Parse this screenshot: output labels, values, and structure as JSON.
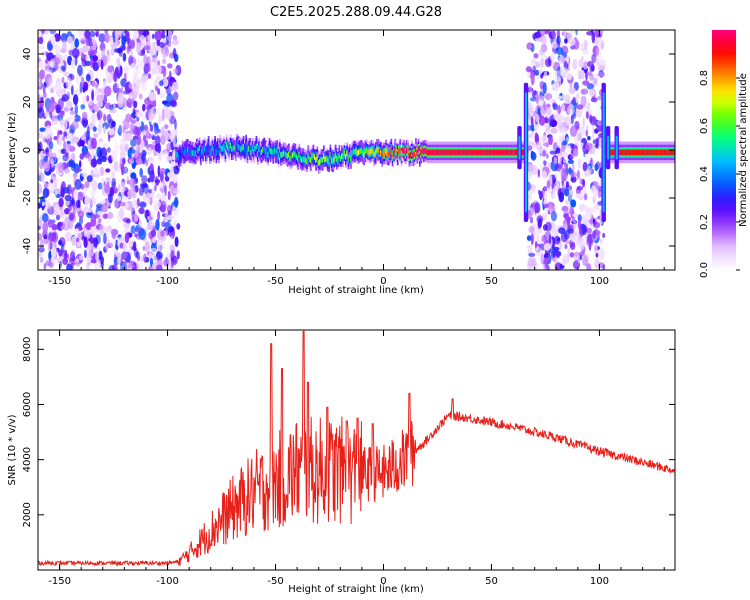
{
  "title": "C2E5.2025.288.09.44.G28",
  "chart_data": [
    {
      "type": "heatmap",
      "xlabel": "Height of straight line (km)",
      "ylabel": "Frequency (Hz)",
      "xlim": [
        -160,
        135
      ],
      "ylim": [
        -50,
        50
      ],
      "x_ticks": [
        -150,
        -100,
        -50,
        0,
        50,
        100
      ],
      "y_ticks": [
        -40,
        -20,
        0,
        20,
        40
      ],
      "colorbar": {
        "label": "Normalized spectral amplitude",
        "range": [
          0,
          1
        ],
        "ticks": [
          "0.0",
          "0.2",
          "0.4",
          "0.6",
          "0.8"
        ],
        "colormap": [
          "#ffffff",
          "#e8c8ff",
          "#a040ff",
          "#4000ff",
          "#0060ff",
          "#00c0ff",
          "#00ff80",
          "#60ff00",
          "#ffff00",
          "#ff8000",
          "#ff0000",
          "#ff0080"
        ]
      },
      "ridge": {
        "x": [
          -96,
          -90,
          -80,
          -70,
          -60,
          -50,
          -40,
          -30,
          -20,
          -10,
          0,
          10,
          20,
          40,
          60,
          100,
          110,
          135
        ],
        "y": [
          -2,
          -1,
          0,
          1,
          0,
          -1,
          -3,
          -4,
          -3,
          -1,
          -1,
          -1,
          -1,
          -1,
          -1,
          -1,
          -1,
          -1
        ],
        "amplitude": [
          0.3,
          0.35,
          0.4,
          0.45,
          0.42,
          0.45,
          0.5,
          0.55,
          0.55,
          0.6,
          0.75,
          0.9,
          0.95,
          0.95,
          0.95,
          0.9,
          0.9,
          0.9
        ]
      },
      "noise_regions": [
        [
          -160,
          -95
        ],
        [
          67,
          102
        ]
      ],
      "spikes_x": [
        63,
        66,
        102,
        104,
        108
      ]
    },
    {
      "type": "line",
      "xlabel": "Height of straight line (km)",
      "ylabel": "SNR (10 * v/v)",
      "xlim": [
        -160,
        135
      ],
      "ylim": [
        0,
        8700
      ],
      "x_ticks": [
        -150,
        -100,
        -50,
        0,
        50,
        100
      ],
      "y_ticks": [
        2000,
        4000,
        6000,
        8000
      ],
      "color": "#e8201a",
      "envelope": {
        "x": [
          -160,
          -100,
          -95,
          -90,
          -80,
          -70,
          -60,
          -50,
          -40,
          -30,
          -20,
          -10,
          0,
          10,
          20,
          30,
          40,
          60,
          80,
          100,
          120,
          135
        ],
        "y": [
          250,
          250,
          300,
          600,
          1400,
          2200,
          2800,
          3200,
          3600,
          3600,
          3600,
          3500,
          3500,
          4000,
          4700,
          5600,
          5500,
          5200,
          4800,
          4300,
          3900,
          3600
        ]
      },
      "spikes": {
        "x": [
          -52,
          -47,
          -37,
          -35,
          -26,
          -17,
          -12,
          -5,
          12,
          32
        ],
        "y": [
          8200,
          7300,
          8650,
          6800,
          5900,
          5400,
          5500,
          5300,
          6400,
          6200
        ]
      }
    }
  ]
}
